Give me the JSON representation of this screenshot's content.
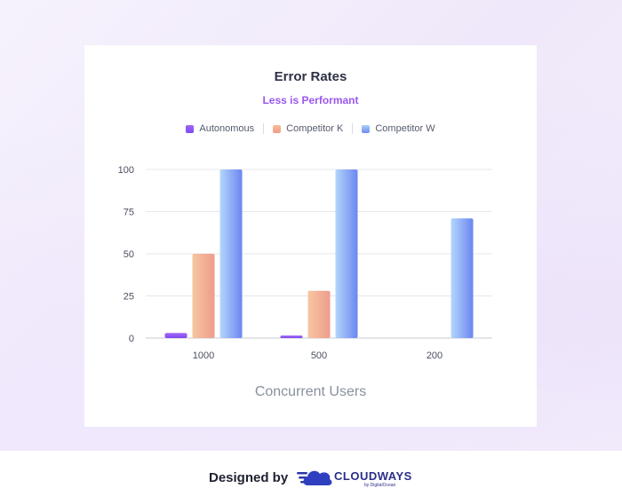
{
  "chart_data": {
    "type": "bar",
    "title": "Error Rates",
    "subtitle": "Less is Performant",
    "xlabel": "Concurrent Users",
    "ylabel": "",
    "categories": [
      "1000",
      "500",
      "200"
    ],
    "series": [
      {
        "name": "Autonomous",
        "values": [
          3,
          1.5,
          0
        ],
        "color": "#8b55f3"
      },
      {
        "name": "Competitor K",
        "values": [
          50,
          28,
          0
        ],
        "color": "#f2b091"
      },
      {
        "name": "Competitor W",
        "values": [
          100,
          100,
          71
        ],
        "color": "#8aaef6"
      }
    ],
    "ylim": [
      0,
      100
    ],
    "yticks": [
      "0",
      "25",
      "50",
      "75",
      "100"
    ],
    "grid": true,
    "legend": "top-center"
  },
  "footer": {
    "designed_by": "Designed by",
    "brand": "CLOUDWAYS",
    "brand_sub": "by DigitalOcean",
    "logo_icon": "cloud-icon"
  }
}
